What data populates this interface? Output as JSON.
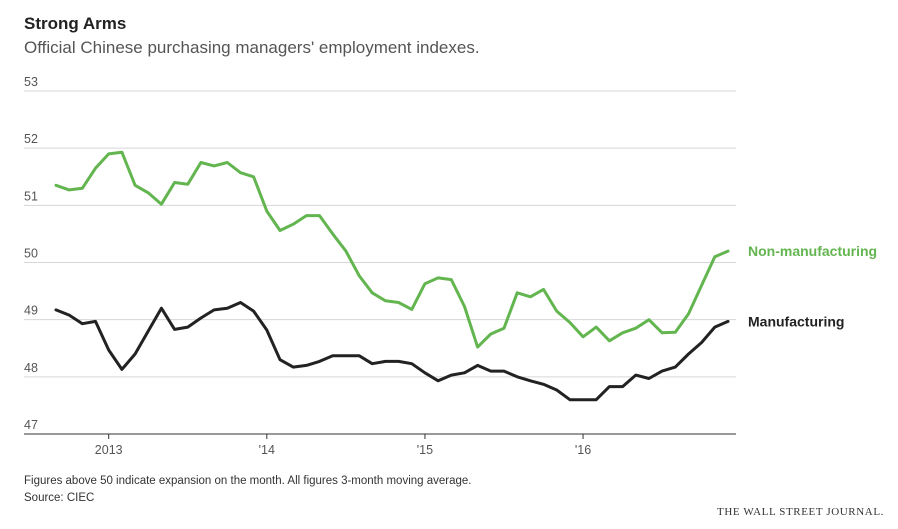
{
  "header": {
    "title": "Strong Arms",
    "subtitle": "Official Chinese purchasing managers' employment indexes."
  },
  "footer": {
    "note": "Figures above 50 indicate expansion on the month. All figures 3-month moving average.",
    "source": "Source: CIEC",
    "publisher": "THE WALL STREET JOURNAL."
  },
  "chart_data": {
    "type": "line",
    "title": "Strong Arms",
    "subtitle": "Official Chinese purchasing managers' employment indexes.",
    "xlabel": "",
    "ylabel": "",
    "ylim": [
      47,
      53
    ],
    "yticks": [
      53,
      52,
      51,
      50,
      49,
      48,
      47
    ],
    "grid": true,
    "x_ticks": [
      {
        "label": "2013",
        "index": 4
      },
      {
        "label": "'14",
        "index": 16
      },
      {
        "label": "'15",
        "index": 28
      },
      {
        "label": "'16",
        "index": 40
      }
    ],
    "x": [
      "2012-09",
      "2012-10",
      "2012-11",
      "2012-12",
      "2013-01",
      "2013-02",
      "2013-03",
      "2013-04",
      "2013-05",
      "2013-06",
      "2013-07",
      "2013-08",
      "2013-09",
      "2013-10",
      "2013-11",
      "2013-12",
      "2014-01",
      "2014-02",
      "2014-03",
      "2014-04",
      "2014-05",
      "2014-06",
      "2014-07",
      "2014-08",
      "2014-09",
      "2014-10",
      "2014-11",
      "2014-12",
      "2015-01",
      "2015-02",
      "2015-03",
      "2015-04",
      "2015-05",
      "2015-06",
      "2015-07",
      "2015-08",
      "2015-09",
      "2015-10",
      "2015-11",
      "2015-12",
      "2016-01",
      "2016-02",
      "2016-03",
      "2016-04",
      "2016-05",
      "2016-06",
      "2016-07",
      "2016-08",
      "2016-09",
      "2016-10",
      "2016-11",
      "2016-12"
    ],
    "series": [
      {
        "name": "Non-manufacturing",
        "color": "#63b54f",
        "values": [
          51.35,
          51.27,
          51.3,
          51.65,
          51.9,
          51.93,
          51.35,
          51.22,
          51.02,
          51.4,
          51.37,
          51.75,
          51.69,
          51.75,
          51.57,
          51.5,
          50.9,
          50.56,
          50.67,
          50.82,
          50.82,
          50.5,
          50.2,
          49.77,
          49.47,
          49.33,
          49.3,
          49.18,
          49.63,
          49.73,
          49.7,
          49.23,
          48.52,
          48.75,
          48.85,
          49.47,
          49.4,
          49.53,
          49.15,
          48.95,
          48.7,
          48.87,
          48.63,
          48.77,
          48.85,
          49.0,
          48.77,
          48.78,
          49.1,
          49.6,
          50.1,
          50.2
        ]
      },
      {
        "name": "Manufacturing",
        "color": "#222222",
        "values": [
          49.17,
          49.08,
          48.93,
          48.97,
          48.47,
          48.13,
          48.4,
          48.8,
          49.2,
          48.83,
          48.87,
          49.03,
          49.17,
          49.2,
          49.3,
          49.15,
          48.82,
          48.3,
          48.17,
          48.2,
          48.27,
          48.37,
          48.37,
          48.37,
          48.23,
          48.27,
          48.27,
          48.23,
          48.07,
          47.93,
          48.03,
          48.07,
          48.2,
          48.1,
          48.1,
          48.0,
          47.93,
          47.87,
          47.77,
          47.6,
          47.6,
          47.6,
          47.83,
          47.83,
          48.03,
          47.97,
          48.1,
          48.17,
          48.4,
          48.6,
          48.87,
          48.97
        ]
      }
    ]
  }
}
